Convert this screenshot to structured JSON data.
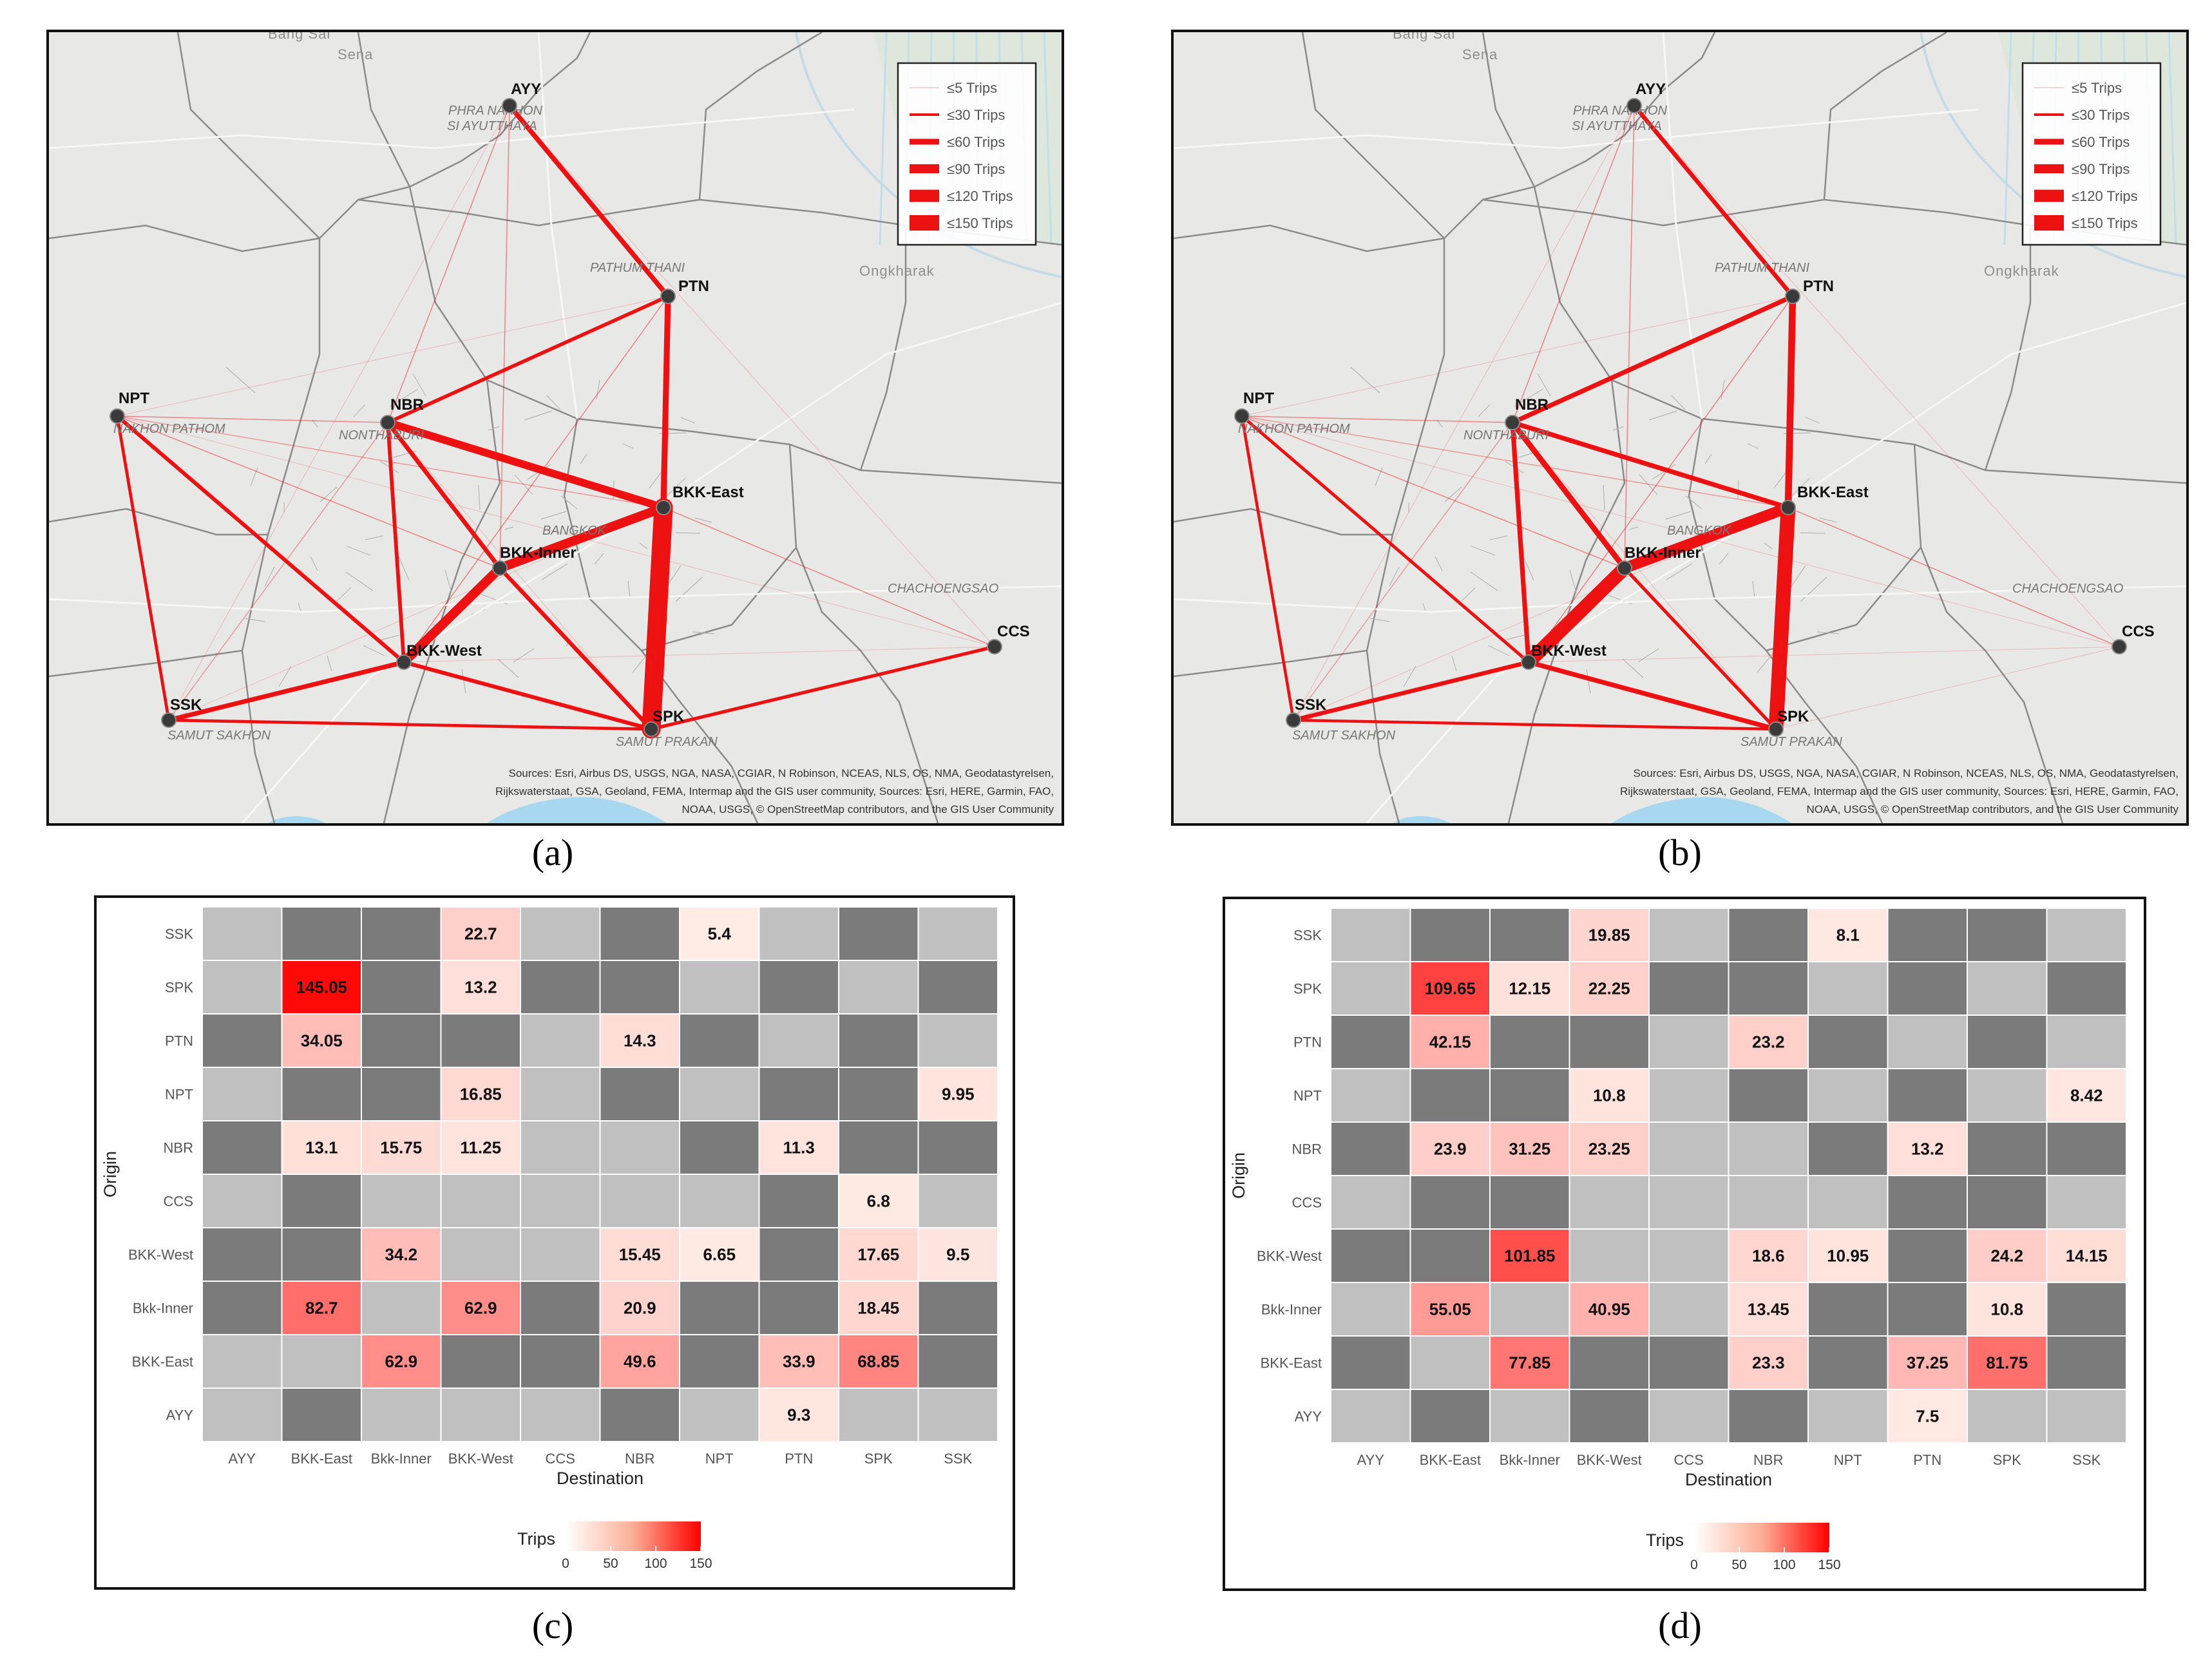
{
  "panel_labels": {
    "a": "(a)",
    "b": "(b)",
    "c": "(c)",
    "d": "(d)"
  },
  "map": {
    "nodes": [
      {
        "code": "AYY",
        "province": "PHRA NAKHON SI AYUTTHAYA"
      },
      {
        "code": "PTN",
        "province": "PATHUM THANI"
      },
      {
        "code": "NPT",
        "province": "NAKHON PATHOM"
      },
      {
        "code": "NBR",
        "province": "NONTHABURI"
      },
      {
        "code": "BKK-East",
        "province": ""
      },
      {
        "code": "BKK-Inner",
        "province": "BANGKOK"
      },
      {
        "code": "BKK-West",
        "province": ""
      },
      {
        "code": "SSK",
        "province": "SAMUT SAKHON"
      },
      {
        "code": "SPK",
        "province": "SAMUT PRAKAN"
      },
      {
        "code": "CCS",
        "province": "CHACHOENGSAO"
      }
    ],
    "place_labels": [
      "Bang Sai",
      "Sena",
      "Ongkharak"
    ],
    "legend": [
      "≤5 Trips",
      "≤30 Trips",
      "≤60 Trips",
      "≤90 Trips",
      "≤120 Trips",
      "≤150 Trips"
    ],
    "attribution": [
      "Sources: Esri, Airbus DS, USGS, NGA, NASA, CGIAR, N Robinson, NCEAS, NLS, OS, NMA, Geodatastyrelsen,",
      "Rijkswaterstaat, GSA, Geoland, FEMA, Intermap and the GIS user community, Sources: Esri, HERE, Garmin, FAO,",
      "NOAA, USGS, © OpenStreetMap contributors, and the GIS User Community"
    ],
    "flows_a": [
      {
        "from": "AYY",
        "to": "PTN",
        "trips": 25
      },
      {
        "from": "PTN",
        "to": "BKK-East",
        "trips": 34
      },
      {
        "from": "PTN",
        "to": "NBR",
        "trips": 14.3
      },
      {
        "from": "NBR",
        "to": "BKK-East",
        "trips": 49.6
      },
      {
        "from": "NBR",
        "to": "BKK-Inner",
        "trips": 20.9
      },
      {
        "from": "NBR",
        "to": "BKK-West",
        "trips": 15.45
      },
      {
        "from": "BKK-Inner",
        "to": "BKK-East",
        "trips": 62.9
      },
      {
        "from": "BKK-Inner",
        "to": "BKK-West",
        "trips": 62.9
      },
      {
        "from": "BKK-East",
        "to": "SPK",
        "trips": 145.05
      },
      {
        "from": "BKK-Inner",
        "to": "SPK",
        "trips": 18.45
      },
      {
        "from": "BKK-West",
        "to": "SPK",
        "trips": 17.65
      },
      {
        "from": "BKK-West",
        "to": "SSK",
        "trips": 22.7
      },
      {
        "from": "NPT",
        "to": "BKK-West",
        "trips": 16.85
      },
      {
        "from": "NPT",
        "to": "SSK",
        "trips": 9.95
      },
      {
        "from": "NPT",
        "to": "NBR",
        "trips": 4
      },
      {
        "from": "SSK",
        "to": "SPK",
        "trips": 10
      },
      {
        "from": "SPK",
        "to": "CCS",
        "trips": 12
      },
      {
        "from": "BKK-East",
        "to": "NPT",
        "trips": 4
      },
      {
        "from": "AYY",
        "to": "NBR",
        "trips": 4
      },
      {
        "from": "SSK",
        "to": "NBR",
        "trips": 4
      },
      {
        "from": "BKK-East",
        "to": "CCS",
        "trips": 4
      },
      {
        "from": "NPT",
        "to": "BKK-Inner",
        "trips": 4
      },
      {
        "from": "PTN",
        "to": "BKK-West",
        "trips": 4
      },
      {
        "from": "AYY",
        "to": "BKK-Inner",
        "trips": 3
      }
    ],
    "flows_b": [
      {
        "from": "AYY",
        "to": "PTN",
        "trips": 20
      },
      {
        "from": "PTN",
        "to": "BKK-East",
        "trips": 42.15
      },
      {
        "from": "PTN",
        "to": "NBR",
        "trips": 23.2
      },
      {
        "from": "NBR",
        "to": "BKK-East",
        "trips": 23.9
      },
      {
        "from": "NBR",
        "to": "BKK-Inner",
        "trips": 31.25
      },
      {
        "from": "NBR",
        "to": "BKK-West",
        "trips": 23.25
      },
      {
        "from": "BKK-Inner",
        "to": "BKK-East",
        "trips": 77.85
      },
      {
        "from": "BKK-Inner",
        "to": "BKK-West",
        "trips": 101.85
      },
      {
        "from": "BKK-East",
        "to": "SPK",
        "trips": 109.65
      },
      {
        "from": "BKK-Inner",
        "to": "SPK",
        "trips": 12.15
      },
      {
        "from": "BKK-West",
        "to": "SPK",
        "trips": 24.2
      },
      {
        "from": "BKK-West",
        "to": "SSK",
        "trips": 19.85
      },
      {
        "from": "NPT",
        "to": "BKK-West",
        "trips": 10.8
      },
      {
        "from": "NPT",
        "to": "SSK",
        "trips": 8.42
      },
      {
        "from": "NPT",
        "to": "NBR",
        "trips": 4
      },
      {
        "from": "SSK",
        "to": "SPK",
        "trips": 8.1
      },
      {
        "from": "BKK-East",
        "to": "NPT",
        "trips": 4
      },
      {
        "from": "AYY",
        "to": "NBR",
        "trips": 4
      },
      {
        "from": "SSK",
        "to": "NBR",
        "trips": 4
      },
      {
        "from": "BKK-East",
        "to": "CCS",
        "trips": 3
      },
      {
        "from": "NPT",
        "to": "BKK-Inner",
        "trips": 4
      },
      {
        "from": "PTN",
        "to": "BKK-West",
        "trips": 4
      },
      {
        "from": "AYY",
        "to": "BKK-Inner",
        "trips": 3
      }
    ]
  },
  "chart_data": [
    {
      "type": "heatmap",
      "panel": "c",
      "xlabel": "Destination",
      "ylabel": "Origin",
      "x": [
        "AYY",
        "BKK-East",
        "Bkk-Inner",
        "BKK-West",
        "CCS",
        "NBR",
        "NPT",
        "PTN",
        "SPK",
        "SSK"
      ],
      "y": [
        "SSK",
        "SPK",
        "PTN",
        "NPT",
        "NBR",
        "CCS",
        "BKK-West",
        "Bkk-Inner",
        "BKK-East",
        "AYY"
      ],
      "cells": [
        [
          "L",
          "D",
          "D",
          22.7,
          "L",
          "D",
          5.4,
          "L",
          "D",
          "L"
        ],
        [
          "L",
          145.05,
          "D",
          13.2,
          "D",
          "D",
          "L",
          "D",
          "L",
          "D"
        ],
        [
          "D",
          34.05,
          "D",
          "D",
          "L",
          14.3,
          "D",
          "L",
          "D",
          "L"
        ],
        [
          "L",
          "D",
          "D",
          16.85,
          "L",
          "D",
          "L",
          "D",
          "D",
          9.95
        ],
        [
          "D",
          13.1,
          15.75,
          11.25,
          "L",
          "L",
          "D",
          11.3,
          "D",
          "D"
        ],
        [
          "L",
          "D",
          "L",
          "L",
          "L",
          "L",
          "L",
          "D",
          6.8,
          "L"
        ],
        [
          "D",
          "D",
          34.2,
          "L",
          "L",
          15.45,
          6.65,
          "D",
          17.65,
          9.5
        ],
        [
          "D",
          82.7,
          "L",
          62.9,
          "D",
          20.9,
          "D",
          "D",
          18.45,
          "D"
        ],
        [
          "L",
          "L",
          62.9,
          "D",
          "D",
          49.6,
          "D",
          33.9,
          68.85,
          "D"
        ],
        [
          "L",
          "D",
          "L",
          "L",
          "L",
          "D",
          "L",
          9.3,
          "L",
          "L"
        ]
      ],
      "legend_title": "Trips",
      "legend_ticks": [
        0,
        50,
        100,
        150
      ],
      "scale_range": [
        0,
        150
      ]
    },
    {
      "type": "heatmap",
      "panel": "d",
      "xlabel": "Destination",
      "ylabel": "Origin",
      "x": [
        "AYY",
        "BKK-East",
        "Bkk-Inner",
        "BKK-West",
        "CCS",
        "NBR",
        "NPT",
        "PTN",
        "SPK",
        "SSK"
      ],
      "y": [
        "SSK",
        "SPK",
        "PTN",
        "NPT",
        "NBR",
        "CCS",
        "BKK-West",
        "Bkk-Inner",
        "BKK-East",
        "AYY"
      ],
      "cells": [
        [
          "L",
          "D",
          "D",
          19.85,
          "L",
          "D",
          8.1,
          "D",
          "D",
          "L"
        ],
        [
          "L",
          109.65,
          12.15,
          22.25,
          "D",
          "D",
          "L",
          "D",
          "L",
          "D"
        ],
        [
          "D",
          42.15,
          "D",
          "D",
          "L",
          23.2,
          "D",
          "L",
          "D",
          "L"
        ],
        [
          "L",
          "D",
          "D",
          10.8,
          "L",
          "D",
          "L",
          "D",
          "L",
          8.42
        ],
        [
          "D",
          23.9,
          31.25,
          23.25,
          "L",
          "L",
          "D",
          13.2,
          "D",
          "D"
        ],
        [
          "L",
          "D",
          "D",
          "L",
          "L",
          "L",
          "L",
          "D",
          "D",
          "L"
        ],
        [
          "D",
          "D",
          101.85,
          "L",
          "L",
          18.6,
          10.95,
          "D",
          24.2,
          14.15
        ],
        [
          "L",
          55.05,
          "L",
          40.95,
          "L",
          13.45,
          "D",
          "D",
          10.8,
          "D"
        ],
        [
          "D",
          "L",
          77.85,
          "D",
          "D",
          23.3,
          "D",
          37.25,
          81.75,
          "D"
        ],
        [
          "L",
          "D",
          "L",
          "D",
          "L",
          "D",
          "L",
          7.5,
          "L",
          "L"
        ]
      ],
      "legend_title": "Trips",
      "legend_ticks": [
        0,
        50,
        100,
        150
      ],
      "scale_range": [
        0,
        150
      ]
    }
  ]
}
